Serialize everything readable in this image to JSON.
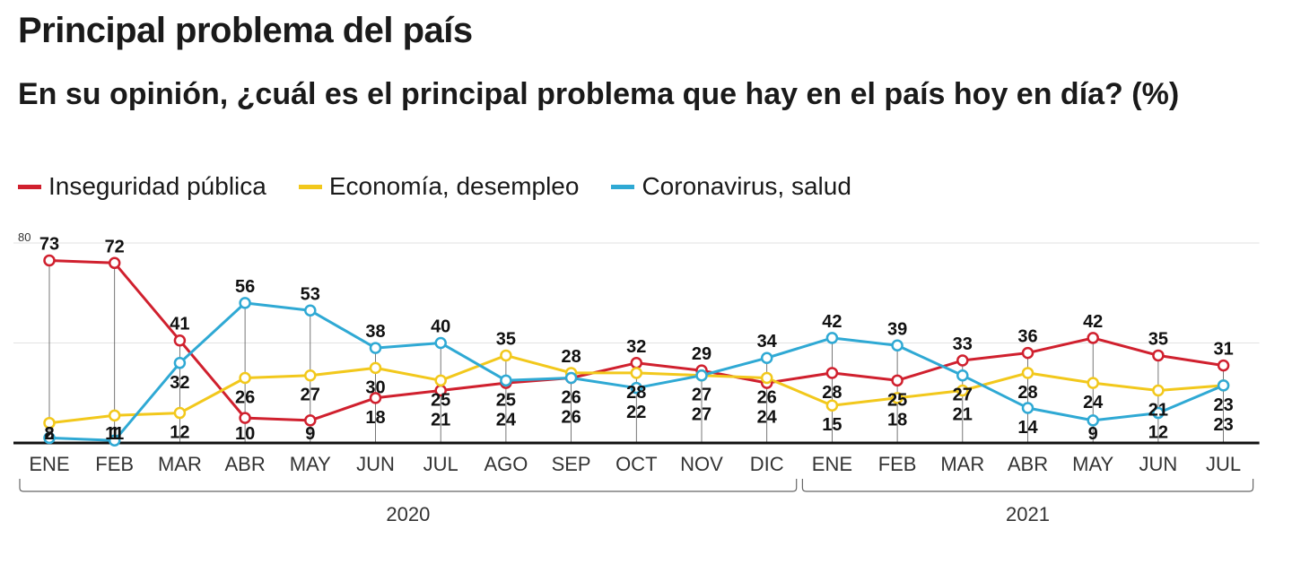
{
  "header": {
    "title": "Principal problema del país",
    "subtitle": "En su opinión, ¿cuál es el principal problema que hay en el país hoy en día?  (%)"
  },
  "chart_data": {
    "type": "line",
    "categories": [
      "ENE",
      "FEB",
      "MAR",
      "ABR",
      "MAY",
      "JUN",
      "JUL",
      "AGO",
      "SEP",
      "OCT",
      "NOV",
      "DIC",
      "ENE",
      "FEB",
      "MAR",
      "ABR",
      "MAY",
      "JUN",
      "JUL"
    ],
    "years": [
      {
        "label": "2020",
        "from": 0,
        "to": 11
      },
      {
        "label": "2021",
        "from": 12,
        "to": 18
      }
    ],
    "ylim": [
      0,
      80
    ],
    "ytick_label": "80",
    "series": [
      {
        "name": "Inseguridad pública",
        "color": "#d0202e",
        "values": [
          73,
          72,
          41,
          10,
          9,
          18,
          21,
          24,
          26,
          32,
          29,
          24,
          28,
          25,
          33,
          36,
          42,
          35,
          31
        ]
      },
      {
        "name": "Economía, desempleo",
        "color": "#f2c81c",
        "values": [
          8,
          11,
          12,
          26,
          27,
          30,
          25,
          35,
          28,
          28,
          27,
          26,
          15,
          18,
          21,
          28,
          24,
          21,
          23
        ]
      },
      {
        "name": "Coronavirus, salud",
        "color": "#2fa9d4",
        "values": [
          2,
          1,
          32,
          56,
          53,
          38,
          40,
          25,
          26,
          22,
          27,
          34,
          42,
          39,
          27,
          14,
          9,
          12,
          23
        ]
      }
    ],
    "grid": true,
    "legend_position": "top-left"
  }
}
